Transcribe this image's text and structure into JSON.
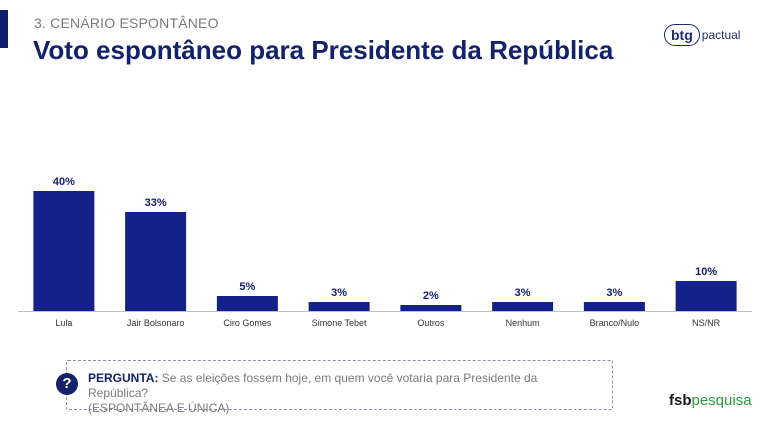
{
  "header": {
    "section": "3. CENÁRIO ESPONTÂNEO",
    "title": "Voto espontâneo para Presidente da República",
    "logo_btg": "btg",
    "logo_pactual": "pactual"
  },
  "question": {
    "label": "PERGUNTA:",
    "text": "Se as eleições fossem hoje, em quem você votaria para Presidente da República?",
    "note": "(ESPONTÂNEA E ÚNICA)",
    "icon": "question-mark-icon"
  },
  "footer": {
    "logo_fsb": "fsb",
    "logo_pesquisa": "pesquisa"
  },
  "colors": {
    "bar": "#14218a",
    "title": "#14216b",
    "accent": "#0f1f6e",
    "fsb_green": "#2e9a3c"
  },
  "chart_data": {
    "type": "bar",
    "categories": [
      "Lula",
      "Jair Bolsonaro",
      "Ciro Gomes",
      "Simone Tebet",
      "Outros",
      "Nenhum",
      "Branco/Nulo",
      "NS/NR"
    ],
    "values": [
      40,
      33,
      5,
      3,
      2,
      3,
      3,
      10
    ],
    "value_labels": [
      "40%",
      "33%",
      "5%",
      "3%",
      "2%",
      "3%",
      "3%",
      "10%"
    ],
    "ylim": [
      0,
      45
    ],
    "grid": false,
    "legend": "none"
  }
}
